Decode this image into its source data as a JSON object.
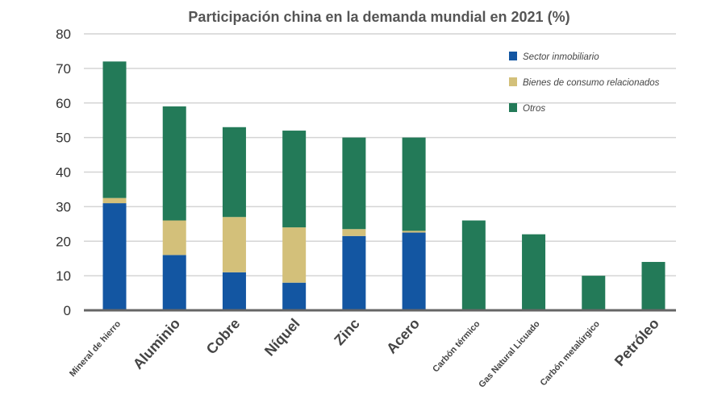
{
  "chart_data": {
    "type": "bar",
    "stacked": true,
    "title": "Participación china en la demanda mundial en 2021 (%)",
    "xlabel": "",
    "ylabel": "",
    "ylim": [
      0,
      80
    ],
    "yticks": [
      "0",
      "10",
      "20",
      "30",
      "40",
      "50",
      "60",
      "70",
      "80"
    ],
    "grid": true,
    "legend_position": "top-right",
    "categories": [
      "Mineral de hierro",
      "Aluminio",
      "Cobre",
      "Níquel",
      "Zinc",
      "Acero",
      "Carbón térmico",
      "Gas Natural Licuado",
      "Carbón metalúrgico",
      "Petróleo"
    ],
    "series": [
      {
        "name": "Sector inmobiliario",
        "color": "#1356a2",
        "values": [
          31,
          16,
          11,
          8,
          21.5,
          22.5,
          0,
          0,
          0,
          0
        ]
      },
      {
        "name": "Bienes de consumo relacionados",
        "color": "#d3c07a",
        "values": [
          1.5,
          10,
          16,
          16,
          2,
          0.5,
          0,
          0,
          0,
          0
        ]
      },
      {
        "name": "Otros",
        "color": "#237a58",
        "values": [
          39.5,
          33,
          26,
          28,
          26.5,
          27,
          26,
          22,
          10,
          14
        ]
      }
    ],
    "last_stack_bases": {
      "Carbón metalúrgico": [
        8,
        0
      ]
    },
    "tick_emphasis": [
      false,
      true,
      true,
      true,
      true,
      true,
      false,
      false,
      false,
      true
    ]
  }
}
